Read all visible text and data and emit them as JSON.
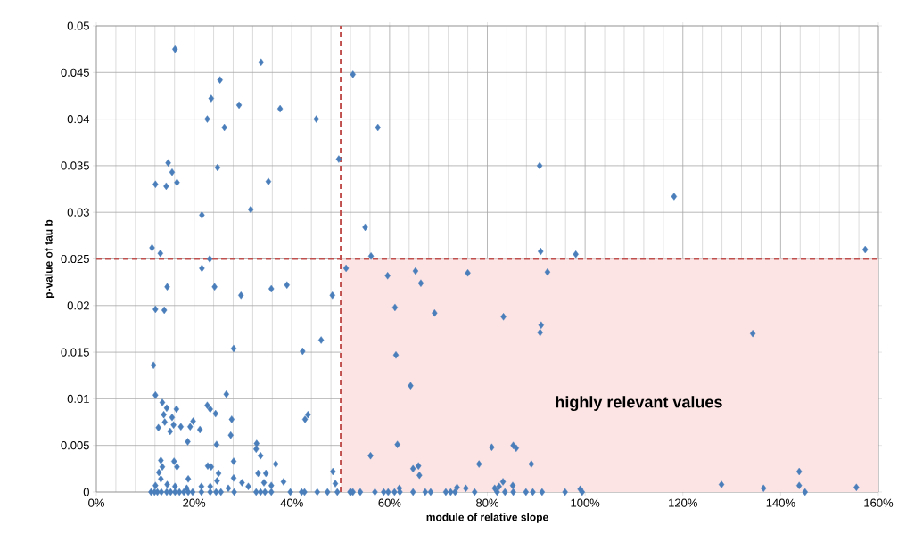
{
  "chart_data": {
    "type": "scatter",
    "xlabel": "module of relative slope",
    "ylabel": "p-value of tau b",
    "color": "#4a7ebb",
    "marker": "diamond",
    "grid": true,
    "x": [
      16.1,
      33.7,
      25.3,
      23.5,
      29.2,
      37.6,
      22.7,
      26.2,
      45.0,
      49.6,
      52.5,
      14.7,
      15.5,
      12.1,
      14.3,
      16.5,
      24.8,
      35.2,
      21.6,
      31.6,
      11.4,
      13.1,
      21.6,
      23.2,
      51.1,
      57.6,
      90.7,
      55.0,
      56.2,
      90.9,
      98.1,
      59.6,
      65.3,
      76.0,
      92.3,
      118.2,
      157.3,
      14.5,
      24.2,
      29.6,
      35.8,
      39.0,
      48.3,
      12.1,
      13.9,
      46.0,
      42.2,
      28.1,
      11.7,
      12.1,
      26.6,
      13.5,
      14.4,
      16.4,
      13.8,
      15.5,
      14.0,
      12.7,
      15.8,
      15.1,
      17.3,
      19.2,
      19.8,
      18.7,
      21.2,
      22.7,
      23.3,
      24.4,
      27.7,
      27.5,
      24.6,
      42.7,
      43.3,
      32.8,
      32.7,
      33.6,
      36.7,
      28.1,
      13.2,
      13.5,
      15.9,
      16.5,
      12.8,
      13.2,
      18.8,
      22.8,
      23.5,
      25.0,
      24.7,
      28.1,
      29.8,
      31.1,
      33.1,
      34.7,
      34.3,
      35.8,
      38.3,
      48.4,
      48.9,
      14.5,
      12.1,
      16.1,
      18.5,
      21.5,
      23.3,
      27.0,
      11.2,
      11.9,
      12.5,
      13.3,
      14.4,
      15.2,
      16.1,
      17.0,
      17.9,
      18.8,
      19.7,
      21.5,
      23.3,
      24.5,
      25.5,
      28.2,
      32.7,
      33.6,
      34.5,
      35.8,
      39.7,
      42.0,
      42.6,
      45.2,
      47.3,
      49.3,
      52.1,
      66.4,
      61.1,
      69.2,
      83.3,
      91.0,
      90.8,
      61.3,
      64.3,
      61.6,
      56.1,
      80.9,
      85.3,
      85.9,
      78.3,
      89.0,
      64.8,
      65.9,
      66.1,
      73.8,
      75.6,
      62.0,
      83.2,
      85.2,
      81.5,
      82.4,
      99.0,
      51.9,
      52.5,
      54.0,
      57.0,
      58.8,
      59.7,
      61.0,
      62.1,
      64.8,
      67.3,
      68.4,
      71.5,
      72.5,
      73.4,
      77.4,
      82.0,
      83.6,
      85.3,
      87.9,
      89.3,
      91.2,
      95.9,
      99.4,
      134.3,
      127.9,
      136.5,
      143.8,
      143.8,
      145.0,
      155.5
    ],
    "values": [
      0.0475,
      0.0461,
      0.0442,
      0.0422,
      0.0415,
      0.0411,
      0.04,
      0.0391,
      0.04,
      0.0357,
      0.0448,
      0.0353,
      0.0343,
      0.033,
      0.0328,
      0.0332,
      0.0348,
      0.0333,
      0.0297,
      0.0303,
      0.0262,
      0.0256,
      0.024,
      0.025,
      0.024,
      0.0391,
      0.035,
      0.0284,
      0.0253,
      0.0258,
      0.0255,
      0.0232,
      0.0237,
      0.0235,
      0.0236,
      0.0317,
      0.026,
      0.022,
      0.022,
      0.0211,
      0.0218,
      0.0222,
      0.0211,
      0.0196,
      0.0195,
      0.0163,
      0.0151,
      0.0154,
      0.0136,
      0.0104,
      0.0105,
      0.0096,
      0.009,
      0.0089,
      0.0083,
      0.008,
      0.0075,
      0.0069,
      0.0072,
      0.0065,
      0.007,
      0.007,
      0.0076,
      0.0054,
      0.0067,
      0.0093,
      0.0089,
      0.0084,
      0.0078,
      0.0061,
      0.0051,
      0.0078,
      0.0083,
      0.0052,
      0.0046,
      0.0039,
      0.003,
      0.0033,
      0.0034,
      0.0027,
      0.0033,
      0.0027,
      0.0021,
      0.0014,
      0.0014,
      0.0028,
      0.0027,
      0.002,
      0.0012,
      0.0015,
      0.001,
      0.0006,
      0.002,
      0.002,
      0.001,
      0.0007,
      0.0011,
      0.0022,
      0.0009,
      0.0008,
      0.0007,
      0.0006,
      0.0004,
      0.0006,
      0.0006,
      0.0004,
      0,
      0,
      0,
      0,
      0,
      0,
      0,
      0,
      0,
      0,
      0,
      0,
      0,
      0,
      0,
      0,
      0,
      0,
      0,
      0,
      0,
      0,
      0,
      0,
      0,
      0,
      0,
      0.0224,
      0.0198,
      0.0192,
      0.0188,
      0.0179,
      0.0171,
      0.0147,
      0.0114,
      0.0051,
      0.0039,
      0.0048,
      0.005,
      0.0047,
      0.003,
      0.003,
      0.0025,
      0.0028,
      0.0018,
      0.0005,
      0.0004,
      0.0004,
      0.0011,
      0.0007,
      0.0004,
      0.0006,
      0.0003,
      0,
      0,
      0,
      0,
      0,
      0,
      0,
      0,
      0,
      0,
      0,
      0,
      0,
      0,
      0,
      0,
      0,
      0,
      0,
      0,
      0,
      0,
      0,
      0.017,
      0.0008,
      0.0004,
      0.0022,
      0.0007,
      0,
      0.0005
    ],
    "xlim": [
      0,
      160
    ],
    "ylim": [
      0,
      0.05
    ],
    "xticks": [
      {
        "value": 0,
        "label": "0%"
      },
      {
        "value": 20,
        "label": "20%"
      },
      {
        "value": 40,
        "label": "40%"
      },
      {
        "value": 60,
        "label": "60%"
      },
      {
        "value": 80,
        "label": "80%"
      },
      {
        "value": 100,
        "label": "100%"
      },
      {
        "value": 120,
        "label": "120%"
      },
      {
        "value": 140,
        "label": "140%"
      },
      {
        "value": 160,
        "label": "160%"
      }
    ],
    "yticks": [
      0,
      0.005,
      0.01,
      0.015,
      0.02,
      0.025,
      0.03,
      0.035,
      0.04,
      0.045,
      0.05
    ],
    "ref_lines": [
      {
        "axis": "x",
        "value": 50,
        "color": "#c0504d",
        "line_style": "dashed"
      },
      {
        "axis": "y",
        "value": 0.025,
        "color": "#c0504d",
        "line_style": "dashed"
      }
    ],
    "bands": [
      {
        "axis": "x",
        "from": 50,
        "to": 160,
        "label": "highly  relevant values",
        "color": "#fce4e4"
      }
    ]
  }
}
